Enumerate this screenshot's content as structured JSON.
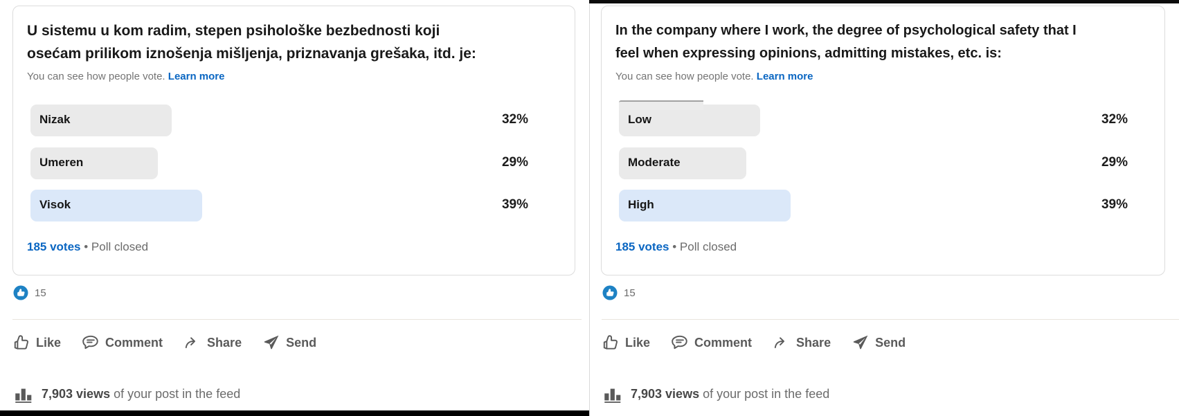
{
  "theme": {
    "accent": "#0a66c2",
    "pill-gray": "#eaeaea",
    "pill-blue": "#dbe8f9",
    "like-blue": "#1e82c4"
  },
  "posts": [
    {
      "language": "Serbian",
      "question_line1": "U sistemu u kom radim, stepen psihološke bezbednosti koji",
      "question_line2": "osećam prilikom iznošenja mišljenja, priznavanja grešaka, itd. je:",
      "vote_note": "You can see how people vote.",
      "learn_more": "Learn more",
      "options": [
        {
          "label": "Nizak",
          "pct": "32%",
          "value": 32,
          "selected": false
        },
        {
          "label": "Umeren",
          "pct": "29%",
          "value": 29,
          "selected": false
        },
        {
          "label": "Visok",
          "pct": "39%",
          "value": 39,
          "selected": true
        }
      ],
      "votes": "185 votes",
      "dot": "•",
      "status": "Poll closed",
      "reaction_count": "15",
      "actions": {
        "like": "Like",
        "comment": "Comment",
        "share": "Share",
        "send": "Send"
      },
      "views_count": "7,903 views",
      "views_rest": "of your post in the feed"
    },
    {
      "language": "English",
      "question_line1": "In the company where I work, the degree of psychological safety that I",
      "question_line2": "feel when expressing opinions, admitting mistakes, etc. is:",
      "vote_note": "You can see how people vote.",
      "learn_more": "Learn more",
      "options": [
        {
          "label": "Low",
          "pct": "32%",
          "value": 32,
          "selected": false
        },
        {
          "label": "Moderate",
          "pct": "29%",
          "value": 29,
          "selected": false
        },
        {
          "label": "High",
          "pct": "39%",
          "value": 39,
          "selected": true
        }
      ],
      "votes": "185 votes",
      "dot": "•",
      "status": "Poll closed",
      "reaction_count": "15",
      "actions": {
        "like": "Like",
        "comment": "Comment",
        "share": "Share",
        "send": "Send"
      },
      "views_count": "7,903 views",
      "views_rest": "of your post in the feed"
    }
  ]
}
